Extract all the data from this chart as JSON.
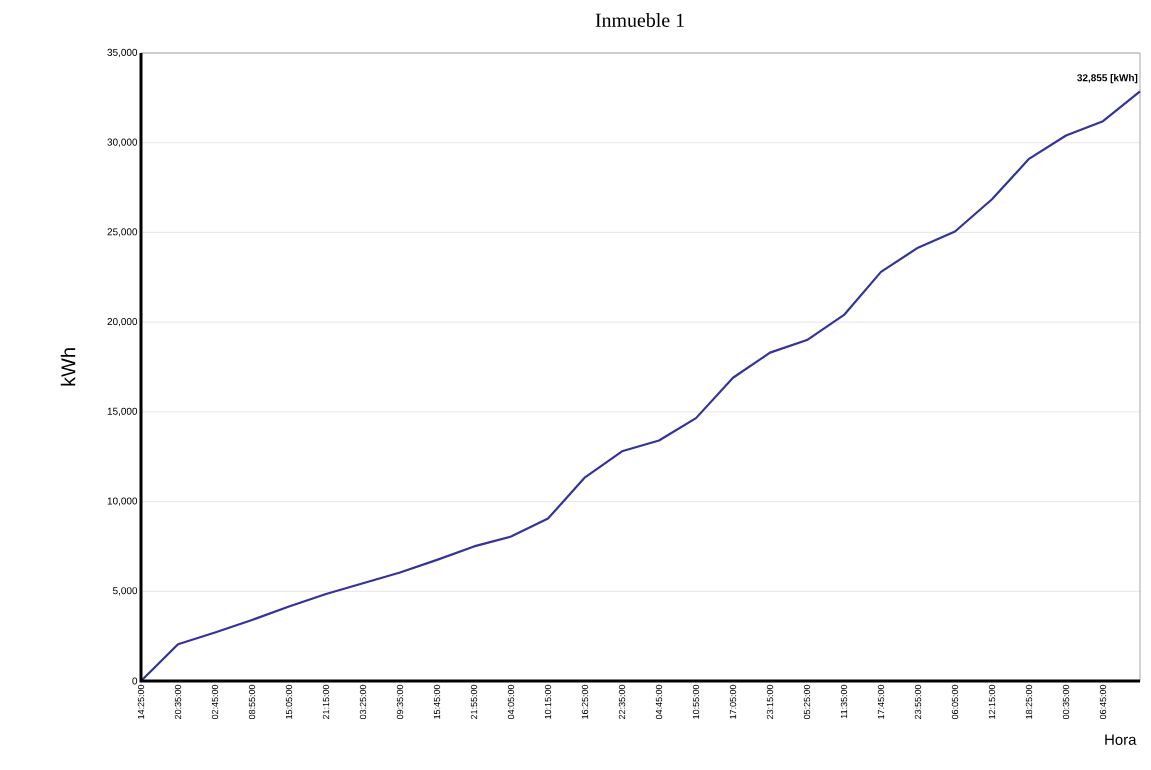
{
  "chart_data": {
    "type": "line",
    "title": "Inmueble 1",
    "xlabel": "Hora",
    "ylabel": "kWh",
    "categories": [
      "14:25:00",
      "20:35:00",
      "02:45:00",
      "08:55:00",
      "15:05:00",
      "21:15:00",
      "03:25:00",
      "09:35:00",
      "15:45:00",
      "21:55:00",
      "04:05:00",
      "10:15:00",
      "16:25:00",
      "22:35:00",
      "04:45:00",
      "10:55:00",
      "17:05:00",
      "23:15:00",
      "05:25:00",
      "11:35:00",
      "17:45:00",
      "23:55:00",
      "06:05:00",
      "12:15:00",
      "18:25:00",
      "00:35:00",
      "06:45:00",
      null
    ],
    "series": [
      {
        "color": "#333399",
        "values": [
          0,
          2050,
          2700,
          3400,
          4150,
          4850,
          5450,
          6050,
          6750,
          7500,
          8050,
          9050,
          11350,
          12800,
          13400,
          14650,
          16900,
          18300,
          19000,
          20400,
          22800,
          24150,
          25050,
          26850,
          29100,
          30400,
          31200,
          32855
        ]
      }
    ],
    "ylim": [
      0,
      35000
    ],
    "yticks": [
      0,
      {
        "value": 5000,
        "label": "5,000"
      },
      {
        "value": 10000,
        "label": "10,000"
      },
      {
        "value": 15000,
        "label": "15,000"
      },
      {
        "value": 20000,
        "label": "20,000"
      },
      {
        "value": 25000,
        "label": "25,000"
      },
      {
        "value": 30000,
        "label": "30,000"
      },
      {
        "value": 35000,
        "label": "35,000"
      }
    ],
    "grid": "y",
    "annotations": [
      "32,855 [kWh]"
    ]
  }
}
